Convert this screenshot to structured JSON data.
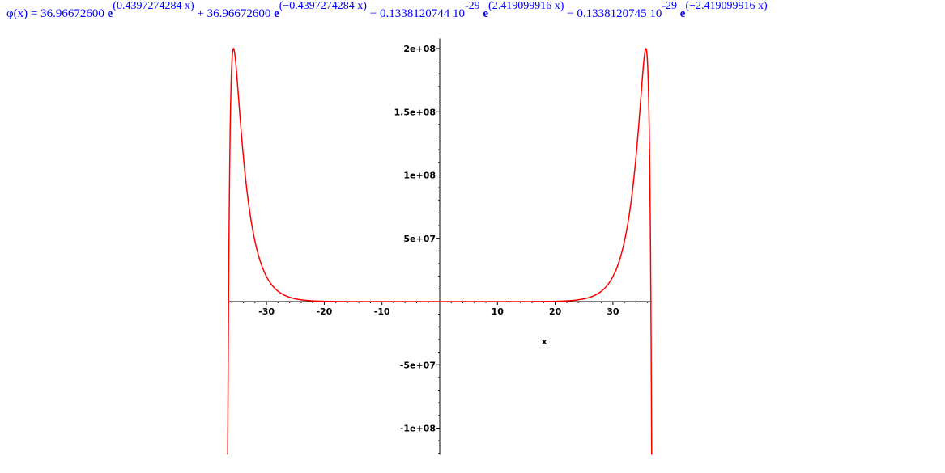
{
  "formula": {
    "lhs": "φ(x) = ",
    "terms": [
      {
        "sign": "",
        "coef": "36.96672600",
        "power": "",
        "exponent": "(0.4397274284 x)"
      },
      {
        "sign": " + ",
        "coef": "36.96672600",
        "power": "",
        "exponent": "(−0.4397274284 x)"
      },
      {
        "sign": " − ",
        "coef": "0.1338120744 10",
        "power": "-29",
        "exponent": "(2.419099916 x)"
      },
      {
        "sign": " − ",
        "coef": "0.1338120745 10",
        "power": "-29",
        "exponent": "(−2.419099916 x)"
      }
    ],
    "color": "#0000ff"
  },
  "chart_data": {
    "type": "line",
    "title": "",
    "xlabel": "x",
    "ylabel": "",
    "function": {
      "A": 36.966726,
      "a": 0.4397274284,
      "B": 36.966726,
      "b": -0.4397274284,
      "C": -1.338120744e-30,
      "c": 2.419099916,
      "D": -1.338120745e-30,
      "d": -2.419099916
    },
    "xlim": [
      -36.72,
      36.72
    ],
    "ylim": [
      -121000000.0,
      208000000.0
    ],
    "x_ticks": [
      -30,
      -20,
      -10,
      10,
      20,
      30
    ],
    "x_tick_labels": [
      "-30",
      "-20",
      "-10",
      "10",
      "20",
      "30"
    ],
    "y_ticks": [
      200000000.0,
      150000000.0,
      100000000.0,
      50000000.0,
      -50000000.0,
      -100000000.0
    ],
    "y_tick_labels": [
      "2e+08",
      "1.5e+08",
      "1e+08",
      "5e+07",
      "-5e+07",
      "-1e+08"
    ],
    "grid": false,
    "line_color": "#ff0000"
  }
}
